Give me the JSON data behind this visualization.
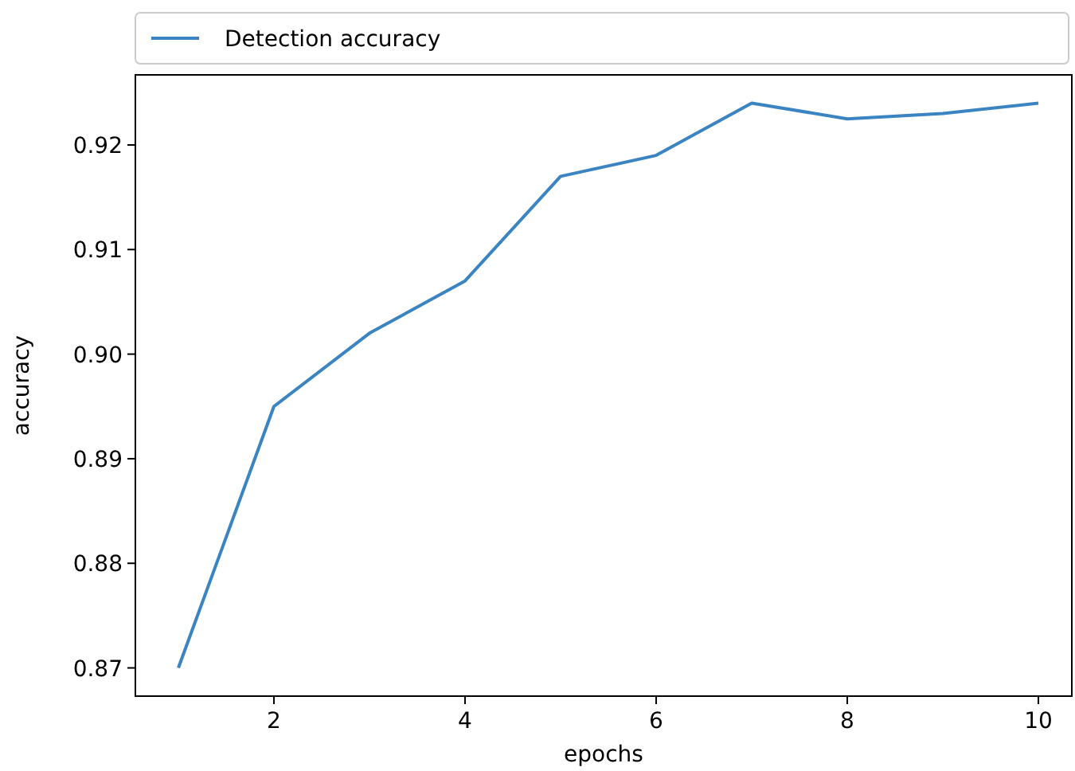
{
  "chart_data": {
    "type": "line",
    "xlabel": "epochs",
    "ylabel": "accuracy",
    "x": [
      1,
      2,
      3,
      4,
      5,
      6,
      7,
      8,
      9,
      10
    ],
    "series": [
      {
        "name": "Detection accuracy",
        "color": "#3a84c2",
        "values": [
          0.87,
          0.895,
          0.902,
          0.907,
          0.917,
          0.919,
          0.924,
          0.9225,
          0.923,
          0.924
        ]
      }
    ],
    "xlim": [
      0.55,
      10.35
    ],
    "xticks": [
      2,
      4,
      6,
      8,
      10
    ],
    "ylim": [
      0.8673,
      0.9267
    ],
    "yticks": [
      0.87,
      0.88,
      0.89,
      {
        "value": 0.9,
        "label": "0.90"
      },
      0.91,
      0.92
    ],
    "legend": "top",
    "grid": false,
    "marker": "none",
    "line_style": "solid"
  }
}
